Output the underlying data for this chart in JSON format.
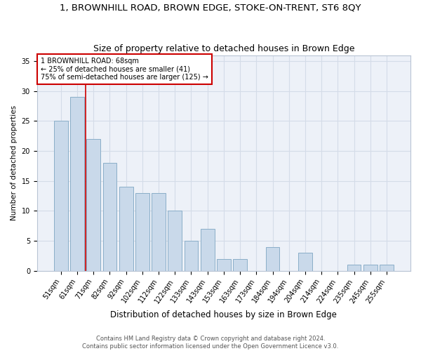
{
  "title": "1, BROWNHILL ROAD, BROWN EDGE, STOKE-ON-TRENT, ST6 8QY",
  "subtitle": "Size of property relative to detached houses in Brown Edge",
  "xlabel": "Distribution of detached houses by size in Brown Edge",
  "ylabel": "Number of detached properties",
  "categories": [
    "51sqm",
    "61sqm",
    "71sqm",
    "82sqm",
    "92sqm",
    "102sqm",
    "112sqm",
    "122sqm",
    "133sqm",
    "143sqm",
    "153sqm",
    "163sqm",
    "173sqm",
    "184sqm",
    "194sqm",
    "204sqm",
    "214sqm",
    "224sqm",
    "235sqm",
    "245sqm",
    "255sqm"
  ],
  "values": [
    25,
    29,
    22,
    18,
    14,
    13,
    13,
    10,
    5,
    7,
    2,
    2,
    0,
    4,
    0,
    3,
    0,
    0,
    1,
    1,
    1
  ],
  "bar_color": "#c9d9ea",
  "bar_edge_color": "#8aaec8",
  "grid_color": "#d4dce8",
  "bg_color": "#edf1f8",
  "vline_x_index": 1.5,
  "vline_color": "#cc0000",
  "annotation_text": "1 BROWNHILL ROAD: 68sqm\n← 25% of detached houses are smaller (41)\n75% of semi-detached houses are larger (125) →",
  "annotation_box_color": "#ffffff",
  "annotation_box_edge": "#cc0000",
  "ylim": [
    0,
    36
  ],
  "yticks": [
    0,
    5,
    10,
    15,
    20,
    25,
    30,
    35
  ],
  "footnote": "Contains HM Land Registry data © Crown copyright and database right 2024.\nContains public sector information licensed under the Open Government Licence v3.0.",
  "title_fontsize": 9.5,
  "subtitle_fontsize": 9,
  "xlabel_fontsize": 8.5,
  "ylabel_fontsize": 7.5,
  "tick_fontsize": 7,
  "annotation_fontsize": 7,
  "footnote_fontsize": 6
}
